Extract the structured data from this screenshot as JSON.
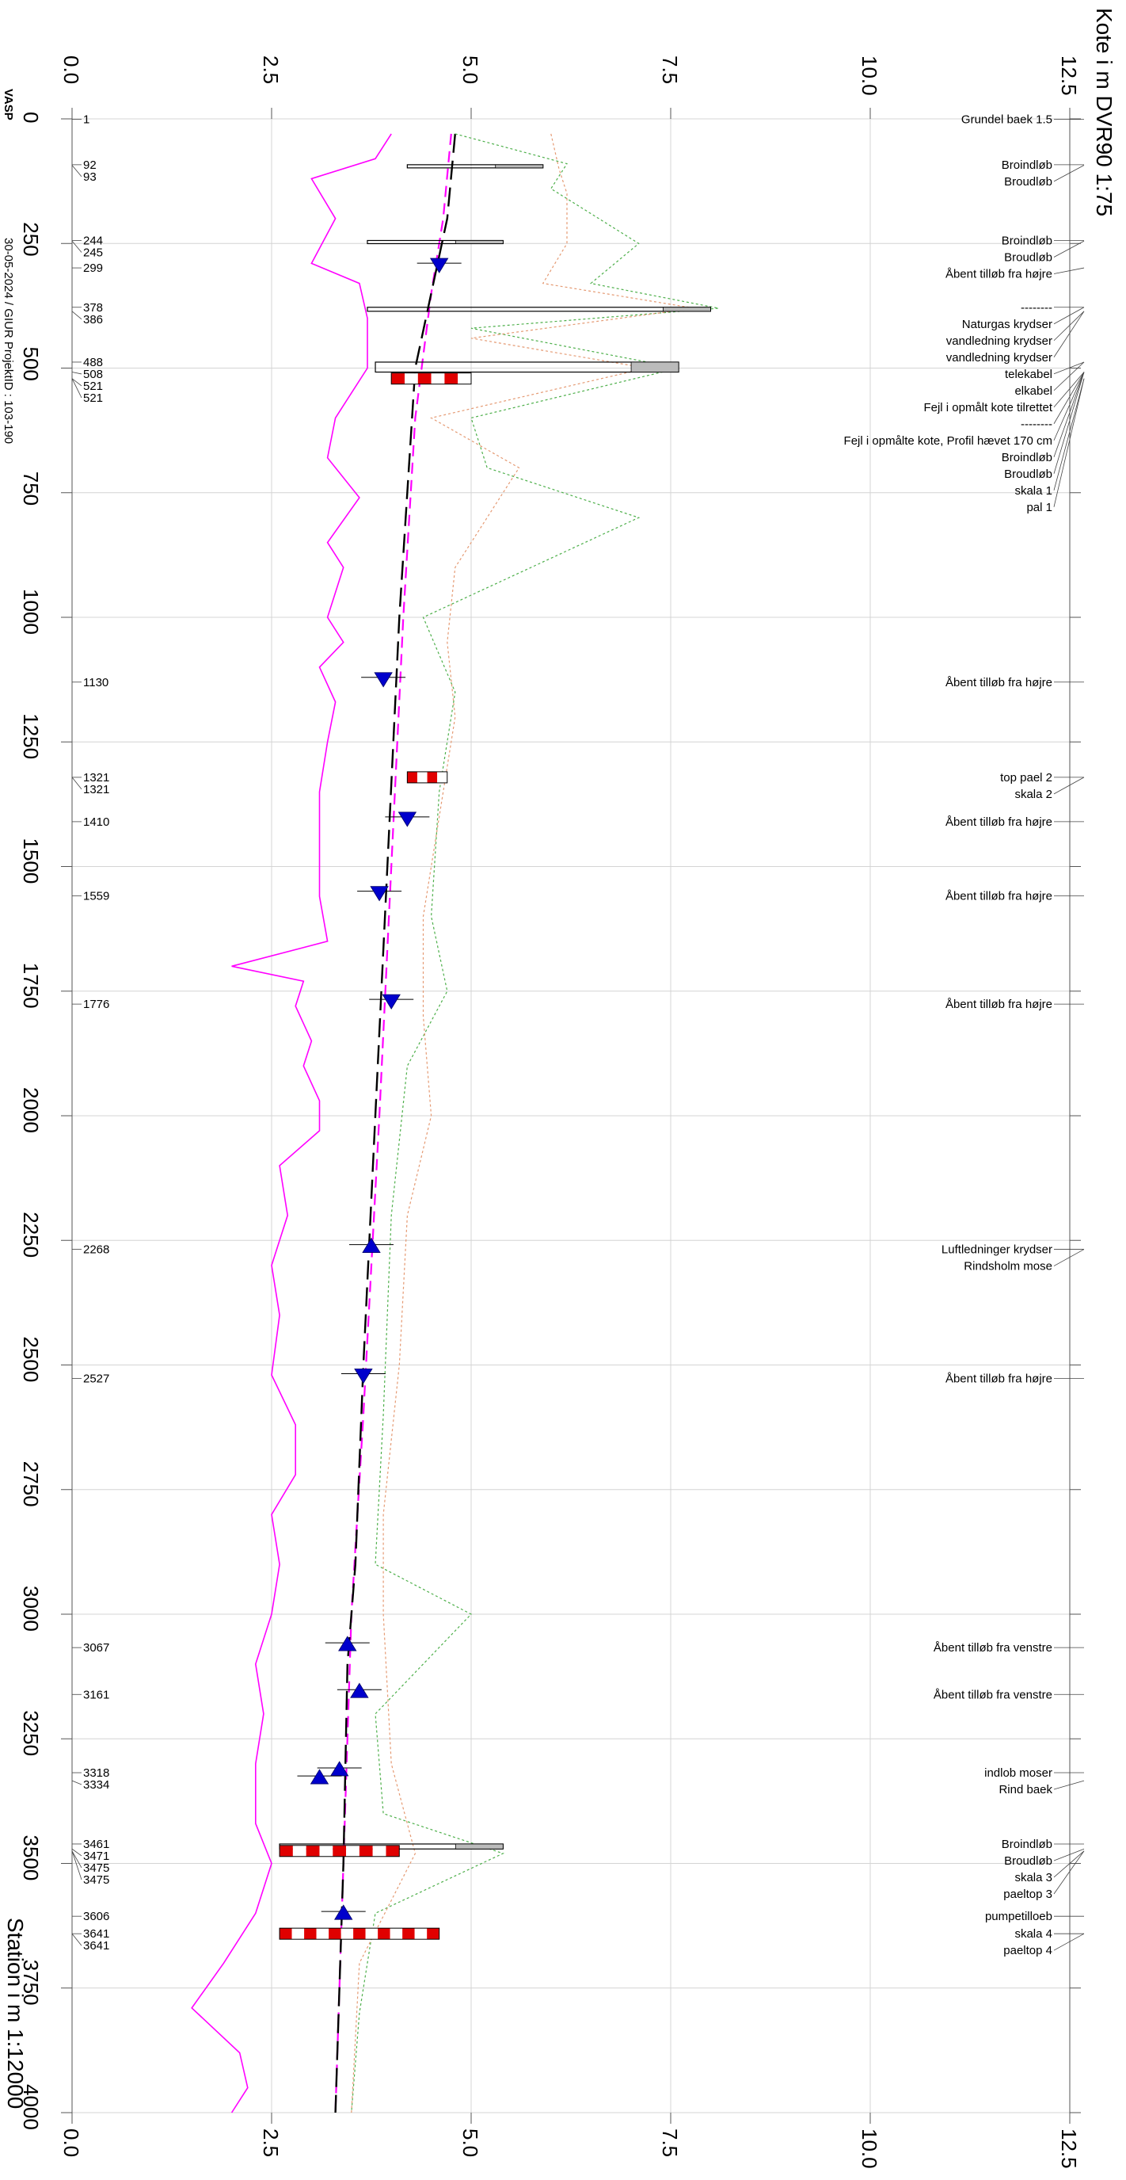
{
  "chart_data": {
    "type": "line",
    "orientation": "rotated (station runs top to bottom, elevation runs left to right)",
    "title": "Kote i m DVR90 1:75",
    "xlabel": "Station i m  1:12000",
    "ylabel": "Kote i m DVR90 1:75",
    "header_code": "VASP",
    "header_info": "30-05-2024 / GIUR  ProjektID : 103-190",
    "station_range": [
      0,
      4000
    ],
    "elevation_range": [
      0.0,
      12.5
    ],
    "station_ticks": [
      "0",
      "250",
      "500",
      "750",
      "1000",
      "1250",
      "1500",
      "1750",
      "2000",
      "2250",
      "2500",
      "2750",
      "3000",
      "3250",
      "3500",
      "3750",
      "4000"
    ],
    "elevation_ticks": [
      "0.0",
      "2.5",
      "5.0",
      "7.5",
      "10.0",
      "12.5"
    ],
    "grid": true,
    "series": [
      {
        "role": "bottom",
        "color": "#ff00ff",
        "style": "solid",
        "points": [
          [
            30,
            4.0
          ],
          [
            80,
            3.8
          ],
          [
            120,
            3.0
          ],
          [
            200,
            3.3
          ],
          [
            290,
            3.0
          ],
          [
            330,
            3.6
          ],
          [
            400,
            3.7
          ],
          [
            500,
            3.7
          ],
          [
            600,
            3.3
          ],
          [
            680,
            3.2
          ],
          [
            760,
            3.6
          ],
          [
            850,
            3.2
          ],
          [
            900,
            3.4
          ],
          [
            1000,
            3.2
          ],
          [
            1050,
            3.4
          ],
          [
            1100,
            3.1
          ],
          [
            1170,
            3.3
          ],
          [
            1250,
            3.2
          ],
          [
            1350,
            3.1
          ],
          [
            1450,
            3.1
          ],
          [
            1560,
            3.1
          ],
          [
            1650,
            3.2
          ],
          [
            1700,
            2.0
          ],
          [
            1730,
            2.9
          ],
          [
            1780,
            2.8
          ],
          [
            1850,
            3.0
          ],
          [
            1900,
            2.9
          ],
          [
            1970,
            3.1
          ],
          [
            2030,
            3.1
          ],
          [
            2100,
            2.6
          ],
          [
            2200,
            2.7
          ],
          [
            2300,
            2.5
          ],
          [
            2400,
            2.6
          ],
          [
            2520,
            2.5
          ],
          [
            2620,
            2.8
          ],
          [
            2720,
            2.8
          ],
          [
            2800,
            2.5
          ],
          [
            2900,
            2.6
          ],
          [
            3000,
            2.5
          ],
          [
            3100,
            2.3
          ],
          [
            3200,
            2.4
          ],
          [
            3300,
            2.3
          ],
          [
            3420,
            2.3
          ],
          [
            3500,
            2.5
          ],
          [
            3600,
            2.3
          ],
          [
            3700,
            1.9
          ],
          [
            3790,
            1.5
          ],
          [
            3880,
            2.1
          ],
          [
            3950,
            2.2
          ],
          [
            4000,
            2.0
          ]
        ]
      },
      {
        "role": "water-level",
        "color": "#ff00ff",
        "style": "dashed",
        "points": [
          [
            30,
            4.75
          ],
          [
            200,
            4.65
          ],
          [
            350,
            4.5
          ],
          [
            600,
            4.3
          ],
          [
            1000,
            4.15
          ],
          [
            1500,
            4.0
          ],
          [
            2000,
            3.85
          ],
          [
            2600,
            3.65
          ],
          [
            3000,
            3.5
          ],
          [
            3500,
            3.4
          ],
          [
            4000,
            3.3
          ]
        ]
      },
      {
        "role": "design-profile",
        "color": "#000000",
        "style": "long-dash",
        "points": [
          [
            30,
            4.8
          ],
          [
            200,
            4.7
          ],
          [
            350,
            4.5
          ],
          [
            500,
            4.3
          ],
          [
            1000,
            4.1
          ],
          [
            1500,
            3.95
          ],
          [
            2000,
            3.8
          ],
          [
            2500,
            3.65
          ],
          [
            2900,
            3.55
          ],
          [
            3100,
            3.45
          ],
          [
            3500,
            3.4
          ],
          [
            4000,
            3.3
          ]
        ]
      },
      {
        "role": "left-terrain",
        "color": "#4daf4a",
        "style": "dotted",
        "points": [
          [
            30,
            4.8
          ],
          [
            60,
            5.5
          ],
          [
            90,
            6.2
          ],
          [
            140,
            6.0
          ],
          [
            250,
            7.1
          ],
          [
            330,
            6.5
          ],
          [
            380,
            8.1
          ],
          [
            420,
            5.0
          ],
          [
            500,
            7.6
          ],
          [
            600,
            5.0
          ],
          [
            700,
            5.2
          ],
          [
            800,
            7.1
          ],
          [
            1000,
            4.4
          ],
          [
            1150,
            4.8
          ],
          [
            1350,
            4.6
          ],
          [
            1600,
            4.5
          ],
          [
            1750,
            4.7
          ],
          [
            1900,
            4.2
          ],
          [
            2200,
            4.0
          ],
          [
            2600,
            3.9
          ],
          [
            2900,
            3.8
          ],
          [
            3000,
            5.0
          ],
          [
            3200,
            3.8
          ],
          [
            3400,
            3.9
          ],
          [
            3480,
            5.4
          ],
          [
            3600,
            3.8
          ],
          [
            3800,
            3.6
          ],
          [
            4000,
            3.5
          ]
        ]
      },
      {
        "role": "right-terrain",
        "color": "#e59a73",
        "style": "dotted",
        "points": [
          [
            30,
            6.0
          ],
          [
            100,
            6.1
          ],
          [
            150,
            6.2
          ],
          [
            250,
            6.2
          ],
          [
            330,
            5.9
          ],
          [
            380,
            7.8
          ],
          [
            440,
            5.0
          ],
          [
            500,
            7.2
          ],
          [
            600,
            4.5
          ],
          [
            700,
            5.6
          ],
          [
            900,
            4.8
          ],
          [
            1050,
            4.7
          ],
          [
            1200,
            4.8
          ],
          [
            1400,
            4.6
          ],
          [
            1600,
            4.4
          ],
          [
            1800,
            4.4
          ],
          [
            2000,
            4.5
          ],
          [
            2200,
            4.2
          ],
          [
            2500,
            4.1
          ],
          [
            2800,
            3.9
          ],
          [
            3000,
            3.9
          ],
          [
            3300,
            4.0
          ],
          [
            3480,
            4.3
          ],
          [
            3700,
            3.6
          ],
          [
            4000,
            3.5
          ]
        ]
      }
    ],
    "left_labels": [
      {
        "station": 1,
        "text": "1"
      },
      {
        "station": 92,
        "text": "92"
      },
      {
        "station": 93,
        "text": "93"
      },
      {
        "station": 244,
        "text": "244"
      },
      {
        "station": 245,
        "text": "245"
      },
      {
        "station": 299,
        "text": "299"
      },
      {
        "station": 378,
        "text": "378"
      },
      {
        "station": 386,
        "text": "386"
      },
      {
        "station": 488,
        "text": "488"
      },
      {
        "station": 508,
        "text": "508"
      },
      {
        "station": 521,
        "text": "521"
      },
      {
        "station": 521,
        "text": "521"
      },
      {
        "station": 1130,
        "text": "1130"
      },
      {
        "station": 1321,
        "text": "1321"
      },
      {
        "station": 1321,
        "text": "1321"
      },
      {
        "station": 1410,
        "text": "1410"
      },
      {
        "station": 1559,
        "text": "1559"
      },
      {
        "station": 1776,
        "text": "1776"
      },
      {
        "station": 2268,
        "text": "2268"
      },
      {
        "station": 2527,
        "text": "2527"
      },
      {
        "station": 3067,
        "text": "3067"
      },
      {
        "station": 3161,
        "text": "3161"
      },
      {
        "station": 3318,
        "text": "3318"
      },
      {
        "station": 3334,
        "text": "3334"
      },
      {
        "station": 3461,
        "text": "3461"
      },
      {
        "station": 3471,
        "text": "3471"
      },
      {
        "station": 3475,
        "text": "3475"
      },
      {
        "station": 3475,
        "text": "3475"
      },
      {
        "station": 3606,
        "text": "3606"
      },
      {
        "station": 3641,
        "text": "3641"
      },
      {
        "station": 3641,
        "text": "3641"
      }
    ],
    "right_labels": [
      {
        "station": 1,
        "text": "Grundel baek 1.5"
      },
      {
        "station": 92,
        "text": "Broindløb"
      },
      {
        "station": 93,
        "text": "Broudløb"
      },
      {
        "station": 244,
        "text": "Broindløb"
      },
      {
        "station": 245,
        "text": "Broudløb"
      },
      {
        "station": 299,
        "text": "Åbent tilløb fra højre"
      },
      {
        "station": 378,
        "text": "--------"
      },
      {
        "station": 378,
        "text": "Naturgas krydser"
      },
      {
        "station": 386,
        "text": "vandledning krydser"
      },
      {
        "station": 386,
        "text": "vandledning krydser"
      },
      {
        "station": 488,
        "text": "telekabel"
      },
      {
        "station": 488,
        "text": "elkabel"
      },
      {
        "station": 508,
        "text": "Fejl i opmålt kote tilrettet"
      },
      {
        "station": 508,
        "text": "--------"
      },
      {
        "station": 508,
        "text": "Fejl i opmålte kote, Profil hævet 170 cm"
      },
      {
        "station": 508,
        "text": "Broindløb"
      },
      {
        "station": 508,
        "text": "Broudløb"
      },
      {
        "station": 521,
        "text": "skala 1"
      },
      {
        "station": 521,
        "text": "pal 1"
      },
      {
        "station": 1130,
        "text": "Åbent tilløb fra højre"
      },
      {
        "station": 1321,
        "text": "top pael 2"
      },
      {
        "station": 1321,
        "text": "skala 2"
      },
      {
        "station": 1410,
        "text": "Åbent tilløb fra højre"
      },
      {
        "station": 1559,
        "text": "Åbent tilløb fra højre"
      },
      {
        "station": 1776,
        "text": "Åbent tilløb fra højre"
      },
      {
        "station": 2268,
        "text": "Luftledninger krydser"
      },
      {
        "station": 2268,
        "text": "Rindsholm mose"
      },
      {
        "station": 2527,
        "text": "Åbent tilløb fra højre"
      },
      {
        "station": 3067,
        "text": "Åbent tilløb fra venstre"
      },
      {
        "station": 3161,
        "text": "Åbent tilløb fra venstre"
      },
      {
        "station": 3318,
        "text": "indlob moser"
      },
      {
        "station": 3334,
        "text": "Rind baek"
      },
      {
        "station": 3461,
        "text": "Broindløb"
      },
      {
        "station": 3471,
        "text": "Broudløb"
      },
      {
        "station": 3475,
        "text": "skala 3"
      },
      {
        "station": 3475,
        "text": "paeltop 3"
      },
      {
        "station": 3606,
        "text": "pumpetilloeb"
      },
      {
        "station": 3641,
        "text": "skala 4"
      },
      {
        "station": 3641,
        "text": "paeltop 4"
      }
    ],
    "bridges": [
      {
        "from": 92,
        "to": 93,
        "bottom": 4.2,
        "top": 5.9
      },
      {
        "from": 244,
        "to": 245,
        "bottom": 3.7,
        "top": 5.4
      },
      {
        "from": 378,
        "to": 386,
        "bottom": 3.7,
        "top": 8.0
      },
      {
        "from": 488,
        "to": 508,
        "bottom": 3.8,
        "top": 7.6
      },
      {
        "from": 3461,
        "to": 3471,
        "bottom": 2.6,
        "top": 5.4
      }
    ],
    "gauges": [
      {
        "station": 521,
        "from": 4.0,
        "to": 5.0,
        "type": "skala"
      },
      {
        "station": 1321,
        "from": 4.2,
        "to": 4.7,
        "type": "pael"
      },
      {
        "station": 3475,
        "from": 2.6,
        "to": 4.1,
        "type": "skala"
      },
      {
        "station": 3641,
        "from": 2.6,
        "to": 4.6,
        "type": "skala"
      }
    ],
    "inlets": [
      {
        "station": 299,
        "elevation": 4.6,
        "direction": "right"
      },
      {
        "station": 1130,
        "elevation": 3.9,
        "direction": "right"
      },
      {
        "station": 1410,
        "elevation": 4.2,
        "direction": "right"
      },
      {
        "station": 1559,
        "elevation": 3.85,
        "direction": "right"
      },
      {
        "station": 1776,
        "elevation": 4.0,
        "direction": "right"
      },
      {
        "station": 2268,
        "elevation": 3.75,
        "direction": "left"
      },
      {
        "station": 2527,
        "elevation": 3.65,
        "direction": "right"
      },
      {
        "station": 3067,
        "elevation": 3.45,
        "direction": "left"
      },
      {
        "station": 3161,
        "elevation": 3.6,
        "direction": "left"
      },
      {
        "station": 3318,
        "elevation": 3.35,
        "direction": "left"
      },
      {
        "station": 3334,
        "elevation": 3.1,
        "direction": "left"
      },
      {
        "station": 3606,
        "elevation": 3.4,
        "direction": "left"
      }
    ]
  }
}
